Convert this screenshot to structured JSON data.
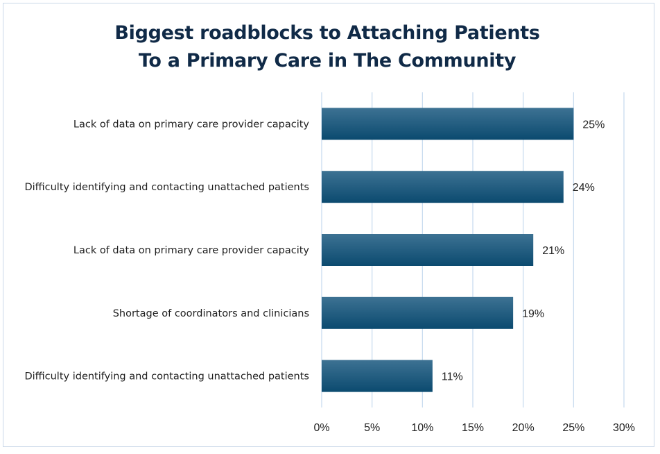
{
  "chart_data": {
    "type": "bar",
    "orientation": "horizontal",
    "title": [
      "Biggest roadblocks to Attaching Patients",
      "To a Primary Care in The Community"
    ],
    "categories": [
      "Lack of data on primary care provider capacity",
      "Difficulty identifying and contacting unattached patients",
      "Lack of data on primary care provider capacity",
      "Shortage of coordinators and clinicians",
      "Difficulty identifying and contacting unattached patients"
    ],
    "values": [
      25,
      24,
      21,
      19,
      11
    ],
    "data_labels": [
      "25%",
      "24%",
      "21%",
      "19%",
      "11%"
    ],
    "xlim": [
      0,
      30
    ],
    "x_ticks": [
      0,
      5,
      10,
      15,
      20,
      25,
      30
    ],
    "x_tick_labels": [
      "0%",
      "5%",
      "10%",
      "15%",
      "20%",
      "25%",
      "30%"
    ],
    "grid": "vertical",
    "legend": "none",
    "bar_color_top": "#3d7293",
    "bar_color_bottom": "#0b4a6f",
    "grid_color": "#c5d9ee",
    "title_color": "#102a47"
  }
}
